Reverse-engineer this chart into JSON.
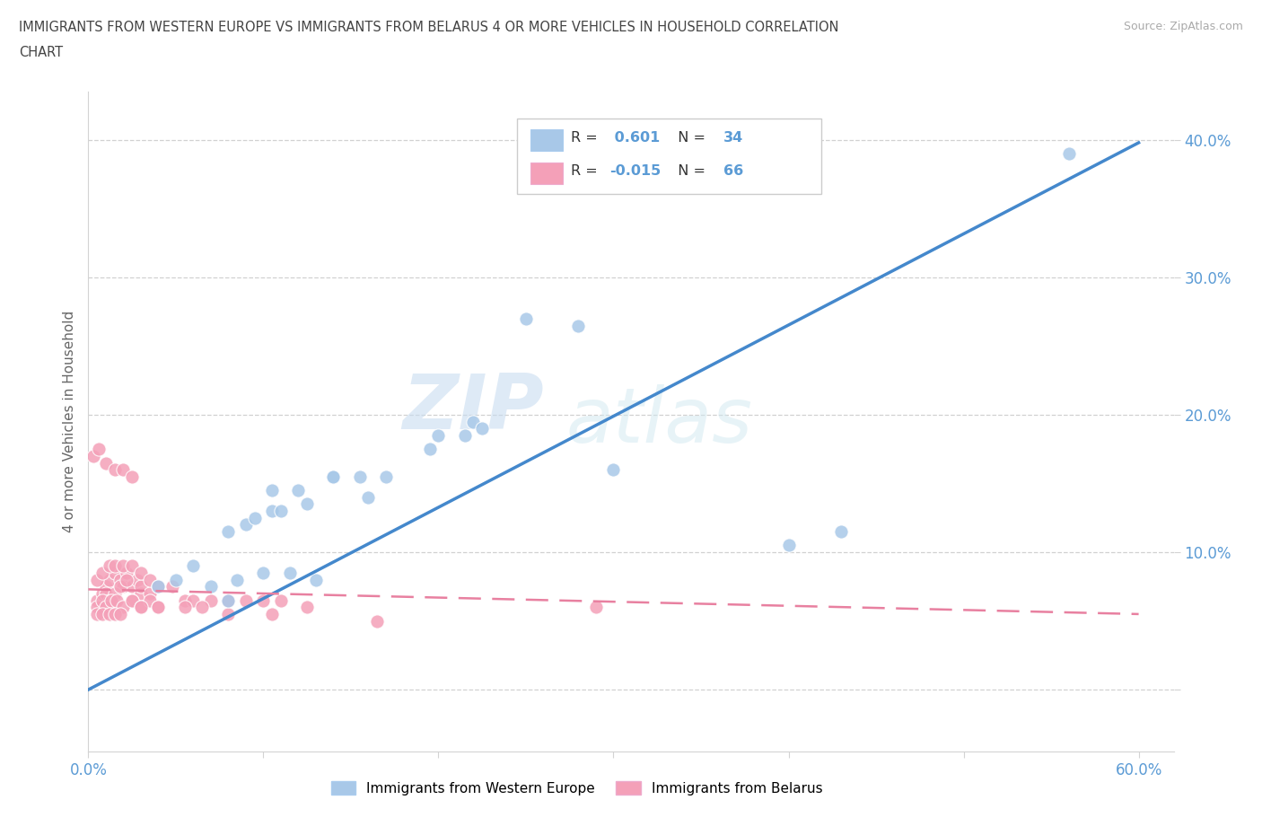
{
  "title_line1": "IMMIGRANTS FROM WESTERN EUROPE VS IMMIGRANTS FROM BELARUS 4 OR MORE VEHICLES IN HOUSEHOLD CORRELATION",
  "title_line2": "CHART",
  "source_text": "Source: ZipAtlas.com",
  "ylabel_text": "4 or more Vehicles in Household",
  "xlim": [
    0.0,
    0.62
  ],
  "ylim": [
    -0.045,
    0.435
  ],
  "xtick_vals": [
    0.0,
    0.1,
    0.2,
    0.3,
    0.4,
    0.5,
    0.6
  ],
  "xtick_labels": [
    "0.0%",
    "",
    "",
    "",
    "",
    "",
    "60.0%"
  ],
  "ytick_vals": [
    0.0,
    0.1,
    0.2,
    0.3,
    0.4
  ],
  "ytick_labels": [
    "",
    "10.0%",
    "20.0%",
    "30.0%",
    "40.0%"
  ],
  "blue_color": "#a8c8e8",
  "pink_color": "#f4a0b8",
  "blue_line_color": "#4488cc",
  "pink_line_color": "#e880a0",
  "r_blue": 0.601,
  "n_blue": 34,
  "r_pink": -0.015,
  "n_pink": 66,
  "legend_label_blue": "Immigrants from Western Europe",
  "legend_label_pink": "Immigrants from Belarus",
  "watermark_zip": "ZIP",
  "watermark_atlas": "atlas",
  "blue_scatter_x": [
    0.27,
    0.56,
    0.04,
    0.05,
    0.06,
    0.07,
    0.085,
    0.1,
    0.115,
    0.13,
    0.16,
    0.17,
    0.195,
    0.2,
    0.215,
    0.22,
    0.225,
    0.14,
    0.155,
    0.105,
    0.12,
    0.14,
    0.08,
    0.09,
    0.095,
    0.105,
    0.11,
    0.125,
    0.3,
    0.25,
    0.28,
    0.4,
    0.43,
    0.08
  ],
  "blue_scatter_y": [
    0.38,
    0.39,
    0.075,
    0.08,
    0.09,
    0.075,
    0.08,
    0.085,
    0.085,
    0.08,
    0.14,
    0.155,
    0.175,
    0.185,
    0.185,
    0.195,
    0.19,
    0.155,
    0.155,
    0.145,
    0.145,
    0.155,
    0.115,
    0.12,
    0.125,
    0.13,
    0.13,
    0.135,
    0.16,
    0.27,
    0.265,
    0.105,
    0.115,
    0.065
  ],
  "pink_scatter_x": [
    0.005,
    0.008,
    0.01,
    0.012,
    0.015,
    0.018,
    0.02,
    0.022,
    0.025,
    0.028,
    0.03,
    0.01,
    0.012,
    0.015,
    0.018,
    0.022,
    0.025,
    0.03,
    0.035,
    0.005,
    0.008,
    0.01,
    0.013,
    0.016,
    0.02,
    0.025,
    0.03,
    0.035,
    0.04,
    0.005,
    0.008,
    0.012,
    0.015,
    0.018,
    0.005,
    0.008,
    0.012,
    0.015,
    0.02,
    0.025,
    0.03,
    0.035,
    0.04,
    0.048,
    0.055,
    0.06,
    0.07,
    0.08,
    0.09,
    0.1,
    0.11,
    0.003,
    0.006,
    0.01,
    0.015,
    0.02,
    0.025,
    0.03,
    0.04,
    0.055,
    0.065,
    0.08,
    0.105,
    0.125,
    0.165,
    0.29
  ],
  "pink_scatter_y": [
    0.065,
    0.07,
    0.075,
    0.08,
    0.085,
    0.08,
    0.075,
    0.085,
    0.075,
    0.08,
    0.07,
    0.07,
    0.065,
    0.07,
    0.075,
    0.08,
    0.065,
    0.075,
    0.07,
    0.06,
    0.065,
    0.06,
    0.065,
    0.065,
    0.06,
    0.065,
    0.06,
    0.065,
    0.06,
    0.055,
    0.055,
    0.055,
    0.055,
    0.055,
    0.08,
    0.085,
    0.09,
    0.09,
    0.09,
    0.09,
    0.085,
    0.08,
    0.075,
    0.075,
    0.065,
    0.065,
    0.065,
    0.065,
    0.065,
    0.065,
    0.065,
    0.17,
    0.175,
    0.165,
    0.16,
    0.16,
    0.155,
    0.06,
    0.06,
    0.06,
    0.06,
    0.055,
    0.055,
    0.06,
    0.05,
    0.06
  ],
  "blue_line_x0": 0.0,
  "blue_line_y0": 0.0,
  "blue_line_x1": 0.6,
  "blue_line_y1": 0.398,
  "pink_line_x0": 0.0,
  "pink_line_y0": 0.073,
  "pink_line_x1": 0.6,
  "pink_line_y1": 0.055
}
